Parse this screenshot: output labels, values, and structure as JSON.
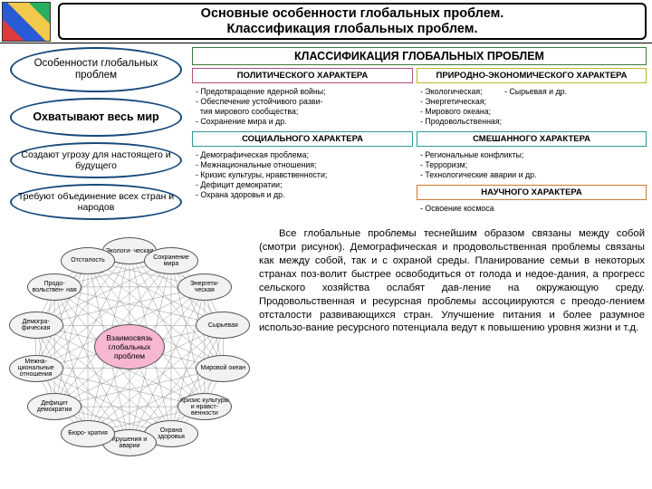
{
  "title": {
    "line1": "Основные особенности глобальных проблем.",
    "line2": "Классификация глобальных проблем."
  },
  "features": {
    "header": "Особенности глобальных проблем",
    "f1": "Охватывают весь мир",
    "f2": "Создают угрозу для настоящего и будущего",
    "f3": "Требуют объединение всех стран и народов"
  },
  "classification": {
    "title": "КЛАССИФИКАЦИЯ ГЛОБАЛЬНЫХ ПРОБЛЕМ",
    "political": {
      "header": "ПОЛИТИЧЕСКОГО ХАРАКТЕРА",
      "items": "- Предотвращение ядерной войны;\n- Обеспечение устойчивого разви-\n  тия мирового сообщества;\n- Сохранение мира и др."
    },
    "social": {
      "header": "СОЦИАЛЬНОГО ХАРАКТЕРА",
      "items": "- Демографическая проблема;\n- Межнациональные отношения;\n- Кризис культуры, нравственности;\n- Дефицит демократии;\n- Охрана здоровья и др."
    },
    "natural": {
      "header": "ПРИРОДНО-ЭКОНОМИЧЕСКОГО ХАРАКТЕРА",
      "items": "- Экологическая;          - Сырьевая и др.\n- Энергетическая;\n- Мирового океана;\n- Продовольственная;"
    },
    "mixed": {
      "header": "СМЕШАННОГО ХАРАКТЕРА",
      "items": "- Региональные конфликты;\n- Терроризм;\n- Технологические аварии и др."
    },
    "science": {
      "header": "НАУЧНОГО ХАРАКТЕРА",
      "items": "- Освоение космоса"
    }
  },
  "diagram": {
    "center": "Взаимосвязь глобальных проблем",
    "radius": 106,
    "nodes": [
      "Экологи-\nческая",
      "Сохранение\nмира",
      "Энергети-\nческая",
      "Сырьевая",
      "Мировой\nокеан",
      "Кризис\nкультуры и\nнравст-\nвенности",
      "Охрана\nздоровья",
      "Крушения\nи аварии",
      "Бюро-\nкратия",
      "Дефицит\nдемократии",
      "Межна-\nциональные\nотношения",
      "Демогра-\nфическая",
      "Продо-\nвольствен-\nная",
      "Отсталость"
    ],
    "node_fill": "#f2f2f2",
    "node_border": "#666666",
    "line_color": "#7a7a7a",
    "center_fill": "#f7b6d2"
  },
  "paragraph": {
    "text": "Все глобальные проблемы теснейшим образом связаны между собой (смотри рисунок). Демографическая и продовольственная проблемы связаны как между собой, так и с охраной среды. Планирование семьи в некоторых странах поз-волит быстрее освободиться от голода и недое-дания, а прогресс сельского хозяйства ослабят дав-ление на окружающую среду. Продовольственная и ресурсная проблемы ассоциируются с преодо-лением отсталости развивающихся стран. Улучшение питания и более разумное использо-вание ресурсного потенциала ведут к повышению уровня жизни и т.д.",
    "fontsize": 11.3
  },
  "colors": {
    "oval_border": "#174a7c",
    "title_border": "#000000",
    "class_border": "#3a7a3a",
    "pink": "#b05080",
    "yellow": "#b8b82a",
    "teal": "#2a9a9a",
    "orange": "#cc7a2a"
  }
}
